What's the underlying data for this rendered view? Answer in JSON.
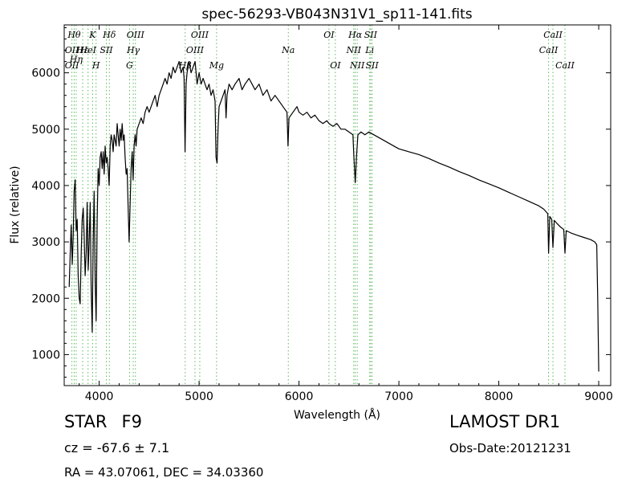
{
  "chart_data": {
    "type": "line",
    "title": "spec-56293-VB043N31V1_sp11-141.fits",
    "xlabel": "Wavelength (Å)",
    "ylabel": "Flux (relative)",
    "xlim": [
      3650,
      9120
    ],
    "ylim": [
      450,
      6850
    ],
    "xticks": [
      4000,
      5000,
      6000,
      7000,
      8000,
      9000
    ],
    "yticks": [
      1000,
      2000,
      3000,
      4000,
      5000,
      6000
    ],
    "grid": false,
    "line_color": "#000000",
    "marker_color": "#5cb85c",
    "series": [
      {
        "values": [
          [
            3700,
            2200
          ],
          [
            3710,
            2800
          ],
          [
            3720,
            3300
          ],
          [
            3730,
            2600
          ],
          [
            3740,
            3100
          ],
          [
            3750,
            3900
          ],
          [
            3760,
            4100
          ],
          [
            3770,
            3200
          ],
          [
            3780,
            3400
          ],
          [
            3790,
            2400
          ],
          [
            3800,
            2000
          ],
          [
            3810,
            1900
          ],
          [
            3820,
            2800
          ],
          [
            3830,
            3400
          ],
          [
            3840,
            3600
          ],
          [
            3850,
            3100
          ],
          [
            3860,
            2400
          ],
          [
            3870,
            2800
          ],
          [
            3880,
            3700
          ],
          [
            3890,
            2500
          ],
          [
            3900,
            3000
          ],
          [
            3910,
            3700
          ],
          [
            3920,
            2200
          ],
          [
            3930,
            1400
          ],
          [
            3940,
            3000
          ],
          [
            3950,
            3900
          ],
          [
            3960,
            2300
          ],
          [
            3970,
            1600
          ],
          [
            3980,
            3400
          ],
          [
            3990,
            4300
          ],
          [
            4000,
            4000
          ],
          [
            4010,
            4500
          ],
          [
            4020,
            4600
          ],
          [
            4030,
            4300
          ],
          [
            4040,
            4600
          ],
          [
            4050,
            4200
          ],
          [
            4060,
            4700
          ],
          [
            4070,
            4400
          ],
          [
            4080,
            4500
          ],
          [
            4090,
            4300
          ],
          [
            4100,
            4000
          ],
          [
            4110,
            4700
          ],
          [
            4120,
            4900
          ],
          [
            4130,
            4800
          ],
          [
            4140,
            4600
          ],
          [
            4150,
            4900
          ],
          [
            4160,
            4800
          ],
          [
            4170,
            4700
          ],
          [
            4180,
            5100
          ],
          [
            4190,
            4900
          ],
          [
            4200,
            4700
          ],
          [
            4210,
            5000
          ],
          [
            4220,
            4800
          ],
          [
            4230,
            5100
          ],
          [
            4240,
            4800
          ],
          [
            4250,
            4900
          ],
          [
            4260,
            4500
          ],
          [
            4270,
            4200
          ],
          [
            4280,
            4300
          ],
          [
            4290,
            3600
          ],
          [
            4300,
            3000
          ],
          [
            4310,
            3700
          ],
          [
            4320,
            4300
          ],
          [
            4330,
            4600
          ],
          [
            4340,
            4100
          ],
          [
            4350,
            4700
          ],
          [
            4360,
            4900
          ],
          [
            4370,
            4700
          ],
          [
            4380,
            5000
          ],
          [
            4400,
            5100
          ],
          [
            4420,
            5200
          ],
          [
            4440,
            5100
          ],
          [
            4460,
            5300
          ],
          [
            4480,
            5400
          ],
          [
            4500,
            5300
          ],
          [
            4520,
            5400
          ],
          [
            4540,
            5500
          ],
          [
            4560,
            5600
          ],
          [
            4580,
            5400
          ],
          [
            4600,
            5600
          ],
          [
            4620,
            5700
          ],
          [
            4640,
            5800
          ],
          [
            4660,
            5900
          ],
          [
            4680,
            5800
          ],
          [
            4700,
            6000
          ],
          [
            4720,
            5900
          ],
          [
            4740,
            6100
          ],
          [
            4760,
            6000
          ],
          [
            4780,
            6100
          ],
          [
            4800,
            6200
          ],
          [
            4820,
            6000
          ],
          [
            4840,
            6100
          ],
          [
            4850,
            5900
          ],
          [
            4860,
            4600
          ],
          [
            4870,
            5800
          ],
          [
            4880,
            6000
          ],
          [
            4900,
            6200
          ],
          [
            4920,
            6000
          ],
          [
            4940,
            6100
          ],
          [
            4960,
            6200
          ],
          [
            4980,
            5800
          ],
          [
            5000,
            6000
          ],
          [
            5020,
            5800
          ],
          [
            5040,
            5900
          ],
          [
            5060,
            5800
          ],
          [
            5080,
            5700
          ],
          [
            5100,
            5800
          ],
          [
            5120,
            5600
          ],
          [
            5140,
            5700
          ],
          [
            5160,
            5500
          ],
          [
            5170,
            4500
          ],
          [
            5180,
            4400
          ],
          [
            5190,
            5000
          ],
          [
            5200,
            5400
          ],
          [
            5220,
            5500
          ],
          [
            5240,
            5600
          ],
          [
            5260,
            5700
          ],
          [
            5270,
            5200
          ],
          [
            5280,
            5600
          ],
          [
            5300,
            5800
          ],
          [
            5330,
            5700
          ],
          [
            5360,
            5800
          ],
          [
            5400,
            5900
          ],
          [
            5430,
            5700
          ],
          [
            5460,
            5800
          ],
          [
            5500,
            5900
          ],
          [
            5530,
            5800
          ],
          [
            5560,
            5700
          ],
          [
            5600,
            5800
          ],
          [
            5640,
            5600
          ],
          [
            5680,
            5700
          ],
          [
            5720,
            5500
          ],
          [
            5760,
            5600
          ],
          [
            5800,
            5500
          ],
          [
            5840,
            5400
          ],
          [
            5880,
            5300
          ],
          [
            5890,
            4700
          ],
          [
            5900,
            5200
          ],
          [
            5940,
            5300
          ],
          [
            5980,
            5400
          ],
          [
            6000,
            5300
          ],
          [
            6040,
            5250
          ],
          [
            6080,
            5300
          ],
          [
            6120,
            5200
          ],
          [
            6160,
            5250
          ],
          [
            6200,
            5150
          ],
          [
            6240,
            5100
          ],
          [
            6280,
            5150
          ],
          [
            6300,
            5100
          ],
          [
            6340,
            5050
          ],
          [
            6380,
            5100
          ],
          [
            6420,
            5000
          ],
          [
            6460,
            5000
          ],
          [
            6500,
            4950
          ],
          [
            6540,
            4900
          ],
          [
            6550,
            4500
          ],
          [
            6563,
            4050
          ],
          [
            6575,
            4500
          ],
          [
            6590,
            4900
          ],
          [
            6620,
            4950
          ],
          [
            6660,
            4900
          ],
          [
            6700,
            4950
          ],
          [
            6750,
            4900
          ],
          [
            6800,
            4850
          ],
          [
            6850,
            4800
          ],
          [
            6900,
            4750
          ],
          [
            6950,
            4700
          ],
          [
            7000,
            4650
          ],
          [
            7100,
            4600
          ],
          [
            7200,
            4550
          ],
          [
            7300,
            4480
          ],
          [
            7400,
            4400
          ],
          [
            7500,
            4330
          ],
          [
            7600,
            4250
          ],
          [
            7700,
            4180
          ],
          [
            7800,
            4100
          ],
          [
            7900,
            4030
          ],
          [
            8000,
            3960
          ],
          [
            8100,
            3880
          ],
          [
            8200,
            3800
          ],
          [
            8300,
            3720
          ],
          [
            8400,
            3640
          ],
          [
            8450,
            3580
          ],
          [
            8490,
            3500
          ],
          [
            8498,
            2800
          ],
          [
            8510,
            3450
          ],
          [
            8530,
            3400
          ],
          [
            8542,
            2900
          ],
          [
            8555,
            3380
          ],
          [
            8580,
            3330
          ],
          [
            8620,
            3260
          ],
          [
            8650,
            3220
          ],
          [
            8662,
            2800
          ],
          [
            8675,
            3200
          ],
          [
            8720,
            3160
          ],
          [
            8780,
            3120
          ],
          [
            8850,
            3080
          ],
          [
            8920,
            3040
          ],
          [
            8960,
            3000
          ],
          [
            8980,
            2950
          ],
          [
            8990,
            2000
          ],
          [
            9000,
            700
          ]
        ]
      }
    ],
    "line_markers": [
      {
        "wavelength": 3727,
        "labels": [
          "OII",
          "OII"
        ],
        "rows": [
          1,
          2
        ]
      },
      {
        "wavelength": 3750,
        "labels": [
          "Hθ"
        ],
        "rows": [
          0
        ]
      },
      {
        "wavelength": 3770,
        "labels": [
          "Hη"
        ],
        "rows": [
          1.6
        ]
      },
      {
        "wavelength": 3835,
        "labels": [
          "Hε"
        ],
        "rows": [
          1
        ]
      },
      {
        "wavelength": 3889,
        "labels": [
          "HeI"
        ],
        "rows": [
          1
        ]
      },
      {
        "wavelength": 3934,
        "labels": [
          "K"
        ],
        "rows": [
          0
        ]
      },
      {
        "wavelength": 3969,
        "labels": [
          "H"
        ],
        "rows": [
          2
        ]
      },
      {
        "wavelength": 4072,
        "labels": [
          "SII"
        ],
        "rows": [
          1
        ]
      },
      {
        "wavelength": 4102,
        "labels": [
          "Hδ"
        ],
        "rows": [
          0
        ]
      },
      {
        "wavelength": 4304,
        "labels": [
          "G"
        ],
        "rows": [
          2
        ]
      },
      {
        "wavelength": 4341,
        "labels": [
          "Hγ"
        ],
        "rows": [
          1
        ]
      },
      {
        "wavelength": 4363,
        "labels": [
          "OIII"
        ],
        "rows": [
          0
        ]
      },
      {
        "wavelength": 4861,
        "labels": [
          "Hβ"
        ],
        "rows": [
          2
        ]
      },
      {
        "wavelength": 4959,
        "labels": [
          "OIII"
        ],
        "rows": [
          1
        ]
      },
      {
        "wavelength": 5007,
        "labels": [
          "OIII"
        ],
        "rows": [
          0
        ]
      },
      {
        "wavelength": 5175,
        "labels": [
          "Mg"
        ],
        "rows": [
          2
        ]
      },
      {
        "wavelength": 5893,
        "labels": [
          "Na"
        ],
        "rows": [
          1
        ]
      },
      {
        "wavelength": 6300,
        "labels": [
          "OI"
        ],
        "rows": [
          0
        ]
      },
      {
        "wavelength": 6364,
        "labels": [
          "OI"
        ],
        "rows": [
          2
        ]
      },
      {
        "wavelength": 6548,
        "labels": [
          "NII"
        ],
        "rows": [
          1
        ]
      },
      {
        "wavelength": 6563,
        "labels": [
          "Hα"
        ],
        "rows": [
          0
        ]
      },
      {
        "wavelength": 6583,
        "labels": [
          "NII"
        ],
        "rows": [
          2
        ]
      },
      {
        "wavelength": 6708,
        "labels": [
          "Li"
        ],
        "rows": [
          1
        ]
      },
      {
        "wavelength": 6717,
        "labels": [
          "SII"
        ],
        "rows": [
          0
        ]
      },
      {
        "wavelength": 6731,
        "labels": [
          "SII"
        ],
        "rows": [
          2
        ]
      },
      {
        "wavelength": 8498,
        "labels": [
          "CaII"
        ],
        "rows": [
          1
        ]
      },
      {
        "wavelength": 8542,
        "labels": [
          "CaII"
        ],
        "rows": [
          0
        ]
      },
      {
        "wavelength": 8662,
        "labels": [
          "CaII"
        ],
        "rows": [
          2
        ]
      }
    ]
  },
  "info": {
    "class_label": "STAR",
    "subclass": "F9",
    "cz_text": "cz = -67.6 ± 7.1",
    "radec_text": "RA = 43.07061, DEC = 34.03360",
    "survey": "LAMOST DR1",
    "obs_date": "Obs-Date:20121231"
  }
}
